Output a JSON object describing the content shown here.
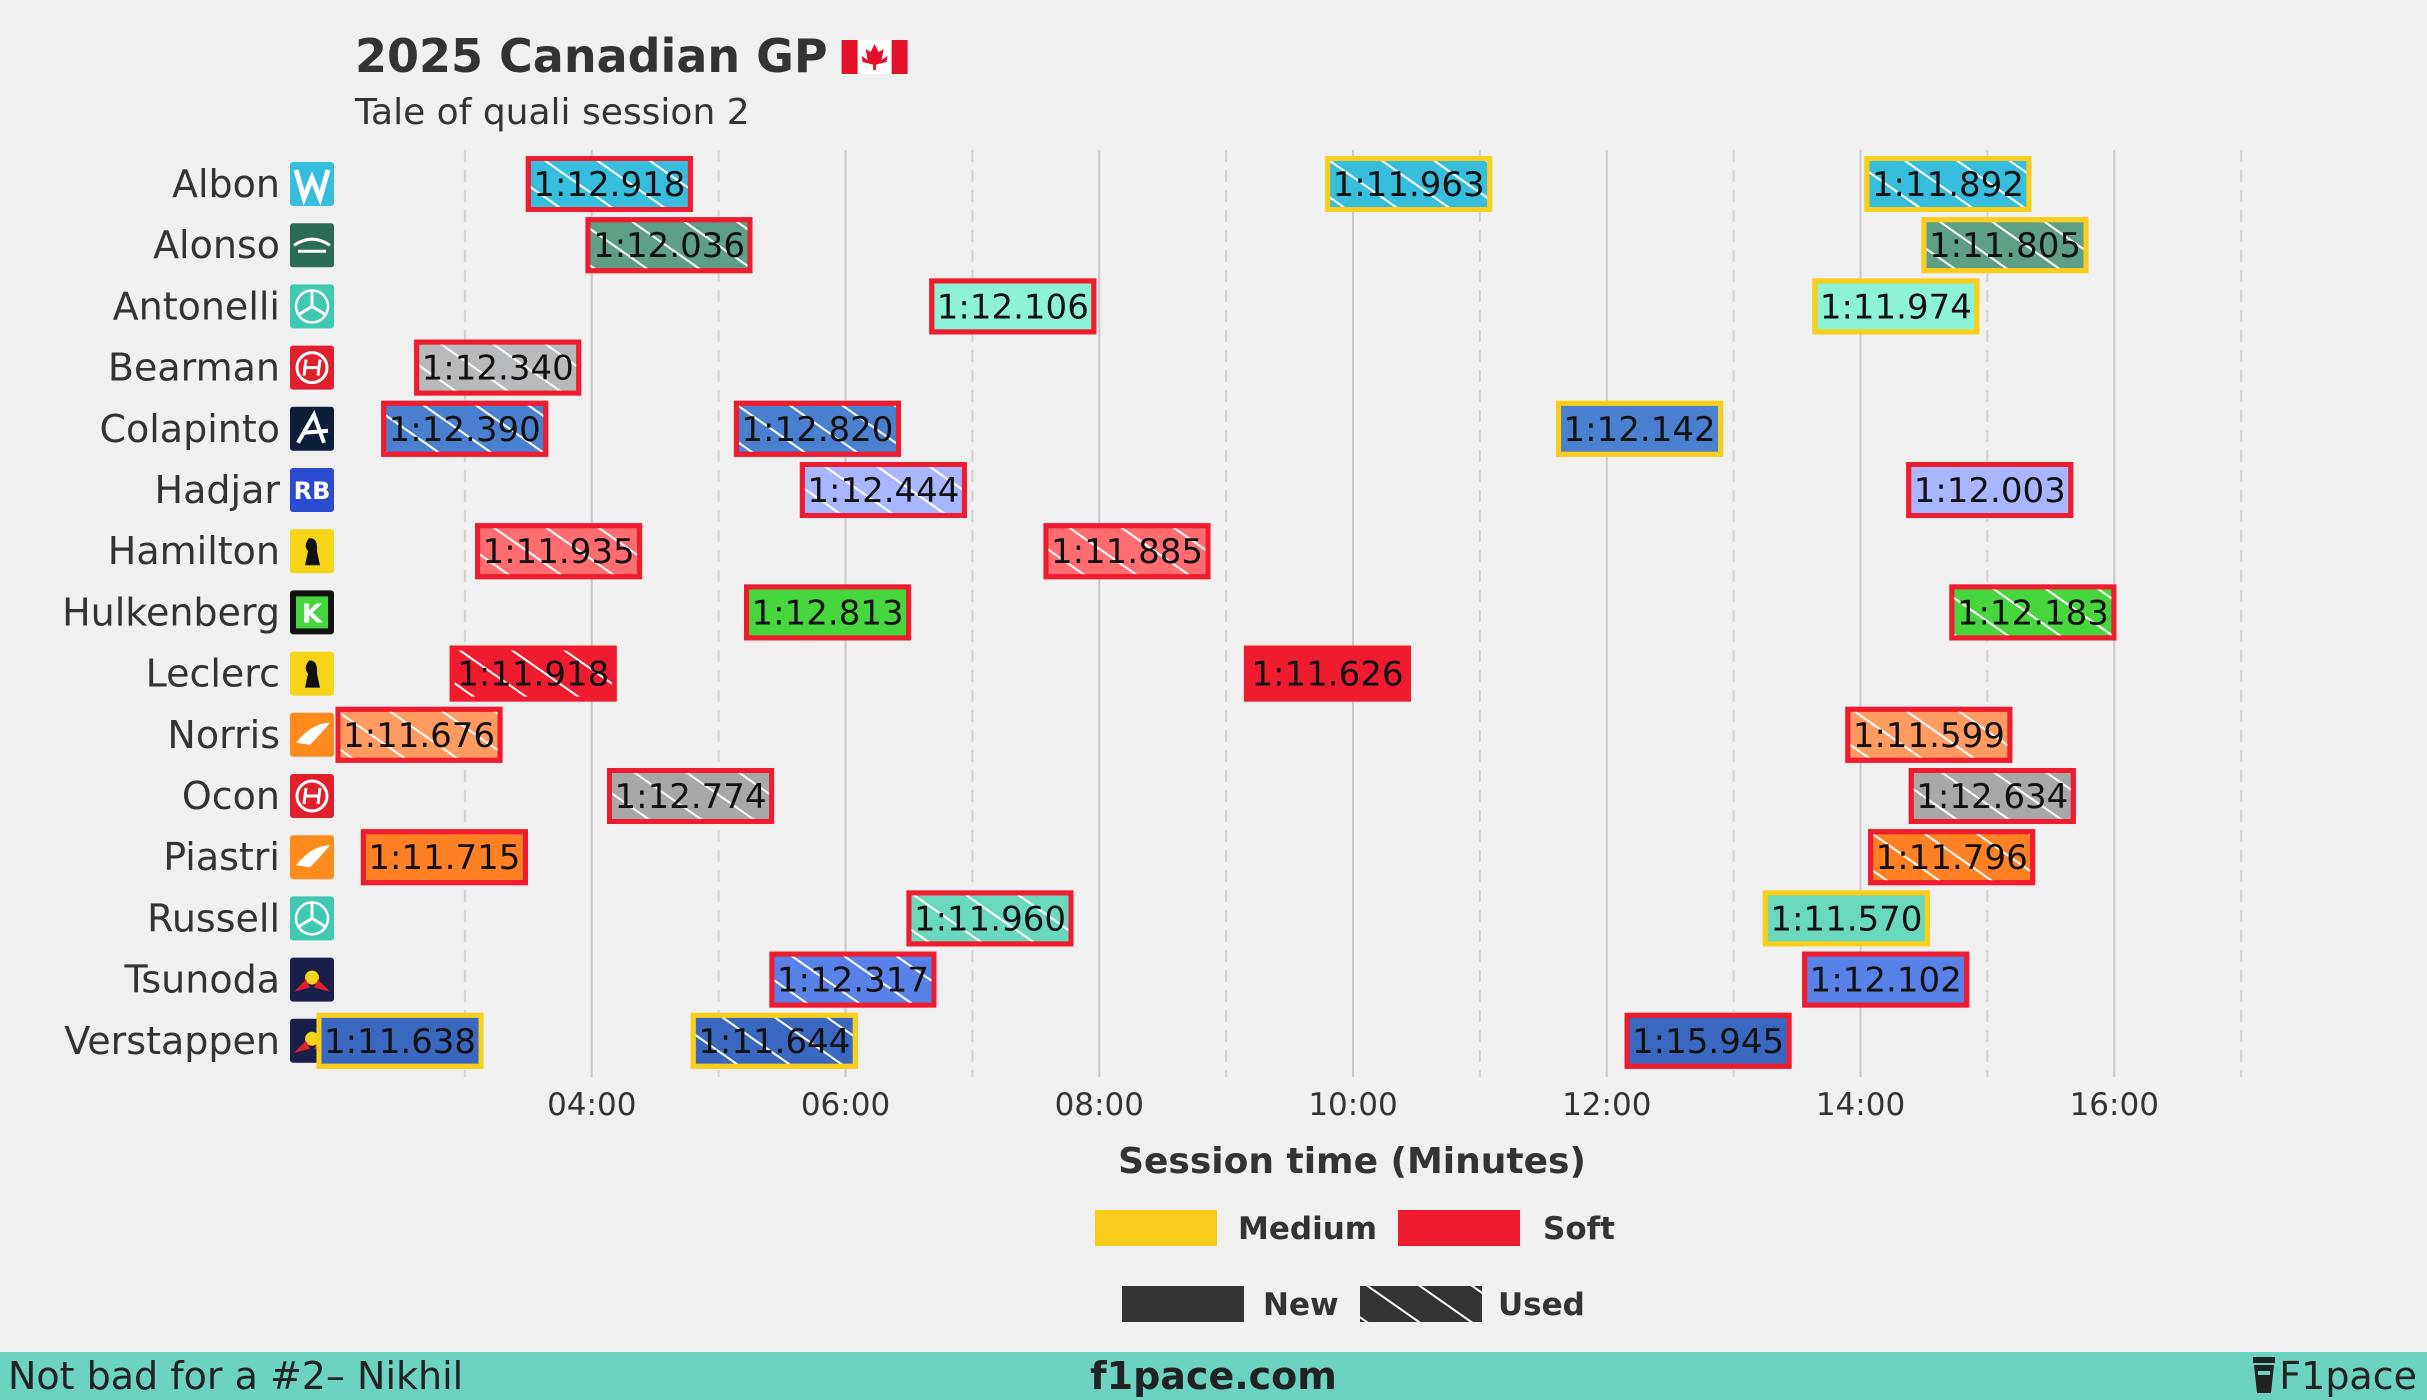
{
  "colors": {
    "Medium": "#f8cd1c",
    "Soft": "#ee1c2e",
    "background": "#f0f0f0",
    "footer": "#6bd3c0",
    "text": "#333333"
  },
  "chart_data": {
    "type": "timeline",
    "title": "2025 Canadian GP",
    "title_flag": "canada-flag-icon",
    "subtitle": "Tale of quali session 2",
    "xlabel": "Session time (Minutes)",
    "xlim": [
      2.0,
      18.0
    ],
    "xticks": [
      {
        "value": 4,
        "label": "04:00"
      },
      {
        "value": 6,
        "label": "06:00"
      },
      {
        "value": 8,
        "label": "08:00"
      },
      {
        "value": 10,
        "label": "10:00"
      },
      {
        "value": 12,
        "label": "12:00"
      },
      {
        "value": 14,
        "label": "14:00"
      },
      {
        "value": 16,
        "label": "16:00"
      }
    ],
    "minor_gridlines": [
      3,
      5,
      7,
      9,
      11,
      13,
      15,
      17
    ],
    "legend": {
      "compounds": [
        {
          "label": "Medium",
          "compound": "Medium"
        },
        {
          "label": "Soft",
          "compound": "Soft"
        }
      ],
      "tyre_age": [
        {
          "label": "New",
          "used": false
        },
        {
          "label": "Used",
          "used": true
        }
      ],
      "position": "bottom-center"
    },
    "drivers": [
      {
        "name": "Albon",
        "team_color": "#37bedd",
        "icon": "williams-logo-icon",
        "laps": [
          {
            "start": 3.5,
            "label": "1:12.918",
            "compound": "Soft",
            "used": true
          },
          {
            "start": 9.8,
            "label": "1:11.963",
            "compound": "Medium",
            "used": true
          },
          {
            "start": 14.05,
            "label": "1:11.892",
            "compound": "Medium",
            "used": true
          }
        ]
      },
      {
        "name": "Alonso",
        "team_color": "#5f9f86",
        "icon": "aston-martin-logo-icon",
        "laps": [
          {
            "start": 3.97,
            "label": "1:12.036",
            "compound": "Soft",
            "used": true
          },
          {
            "start": 14.5,
            "label": "1:11.805",
            "compound": "Medium",
            "used": true
          }
        ]
      },
      {
        "name": "Antonelli",
        "team_color": "#8ef2d6",
        "icon": "mercedes-logo-icon",
        "laps": [
          {
            "start": 6.68,
            "label": "1:12.106",
            "compound": "Soft",
            "used": false
          },
          {
            "start": 13.64,
            "label": "1:11.974",
            "compound": "Medium",
            "used": false
          }
        ]
      },
      {
        "name": "Bearman",
        "team_color": "#b6babd",
        "icon": "haas-logo-icon",
        "laps": [
          {
            "start": 2.62,
            "label": "1:12.340",
            "compound": "Soft",
            "used": true
          }
        ]
      },
      {
        "name": "Colapinto",
        "team_color": "#4b7fcf",
        "icon": "alpine-logo-icon",
        "laps": [
          {
            "start": 2.36,
            "label": "1:12.390",
            "compound": "Soft",
            "used": true
          },
          {
            "start": 5.14,
            "label": "1:12.820",
            "compound": "Soft",
            "used": true
          },
          {
            "start": 11.62,
            "label": "1:12.142",
            "compound": "Medium",
            "used": false
          }
        ]
      },
      {
        "name": "Hadjar",
        "team_color": "#a8b6ff",
        "icon": "racing-bulls-logo-icon",
        "laps": [
          {
            "start": 5.66,
            "label": "1:12.444",
            "compound": "Soft",
            "used": true
          },
          {
            "start": 14.38,
            "label": "1:12.003",
            "compound": "Soft",
            "used": false
          }
        ]
      },
      {
        "name": "Hamilton",
        "team_color": "#ff6d71",
        "icon": "ferrari-logo-icon",
        "laps": [
          {
            "start": 3.1,
            "label": "1:11.935",
            "compound": "Soft",
            "used": true
          },
          {
            "start": 7.58,
            "label": "1:11.885",
            "compound": "Soft",
            "used": true
          }
        ]
      },
      {
        "name": "Hulkenberg",
        "team_color": "#47d63e",
        "icon": "sauber-logo-icon",
        "laps": [
          {
            "start": 5.22,
            "label": "1:12.813",
            "compound": "Soft",
            "used": false
          },
          {
            "start": 14.72,
            "label": "1:12.183",
            "compound": "Soft",
            "used": true
          }
        ]
      },
      {
        "name": "Leclerc",
        "team_color": "#ee1c2e",
        "icon": "ferrari-logo-icon",
        "laps": [
          {
            "start": 2.9,
            "label": "1:11.918",
            "compound": "Soft",
            "used": true
          },
          {
            "start": 9.16,
            "label": "1:11.626",
            "compound": "Soft",
            "used": false
          }
        ]
      },
      {
        "name": "Norris",
        "team_color": "#ff9a60",
        "icon": "mclaren-logo-icon",
        "laps": [
          {
            "start": 2.0,
            "label": "1:11.676",
            "compound": "Soft",
            "used": true
          },
          {
            "start": 13.9,
            "label": "1:11.599",
            "compound": "Soft",
            "used": true
          }
        ]
      },
      {
        "name": "Ocon",
        "team_color": "#a8a8a8",
        "icon": "haas-logo-icon",
        "laps": [
          {
            "start": 4.14,
            "label": "1:12.774",
            "compound": "Soft",
            "used": true
          },
          {
            "start": 14.4,
            "label": "1:12.634",
            "compound": "Soft",
            "used": true
          }
        ]
      },
      {
        "name": "Piastri",
        "team_color": "#ff8124",
        "icon": "mclaren-logo-icon",
        "laps": [
          {
            "start": 2.2,
            "label": "1:11.715",
            "compound": "Soft",
            "used": false
          },
          {
            "start": 14.08,
            "label": "1:11.796",
            "compound": "Soft",
            "used": true
          }
        ]
      },
      {
        "name": "Russell",
        "team_color": "#69d8bd",
        "icon": "mercedes-logo-icon",
        "laps": [
          {
            "start": 6.5,
            "label": "1:11.960",
            "compound": "Soft",
            "used": true
          },
          {
            "start": 13.25,
            "label": "1:11.570",
            "compound": "Medium",
            "used": false
          }
        ]
      },
      {
        "name": "Tsunoda",
        "team_color": "#5882e8",
        "icon": "red-bull-logo-icon",
        "laps": [
          {
            "start": 5.42,
            "label": "1:12.317",
            "compound": "Soft",
            "used": true
          },
          {
            "start": 13.56,
            "label": "1:12.102",
            "compound": "Soft",
            "used": false
          }
        ]
      },
      {
        "name": "Verstappen",
        "team_color": "#3a68c0",
        "icon": "red-bull-logo-icon",
        "laps": [
          {
            "start": 1.85,
            "label": "1:11.638",
            "compound": "Medium",
            "used": false
          },
          {
            "start": 4.8,
            "label": "1:11.644",
            "compound": "Medium",
            "used": true
          },
          {
            "start": 12.16,
            "label": "1:15.945",
            "compound": "Soft",
            "used": false
          }
        ]
      }
    ]
  },
  "footer": {
    "left": "Not bad for a #2– Nikhil",
    "center": "f1pace.com",
    "right": "F1pace",
    "right_icon": "cup-icon"
  }
}
